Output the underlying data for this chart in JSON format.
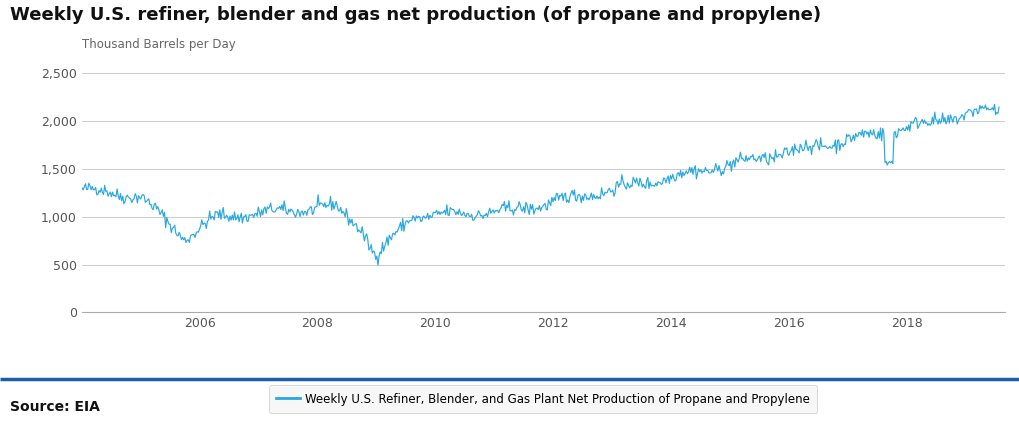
{
  "title": "Weekly U.S. refiner, blender and gas net production (of propane and propylene)",
  "ylabel": "Thousand Barrels per Day",
  "legend_label": "Weekly U.S. Refiner, Blender, and Gas Plant Net Production of Propane and Propylene",
  "source_text": "Source: EIA",
  "line_color": "#29a8e0",
  "background_color": "#ffffff",
  "ylim": [
    0,
    2500
  ],
  "yticks": [
    0,
    500,
    1000,
    1500,
    2000,
    2500
  ],
  "xtick_years": [
    2006,
    2008,
    2010,
    2012,
    2014,
    2016,
    2018
  ]
}
